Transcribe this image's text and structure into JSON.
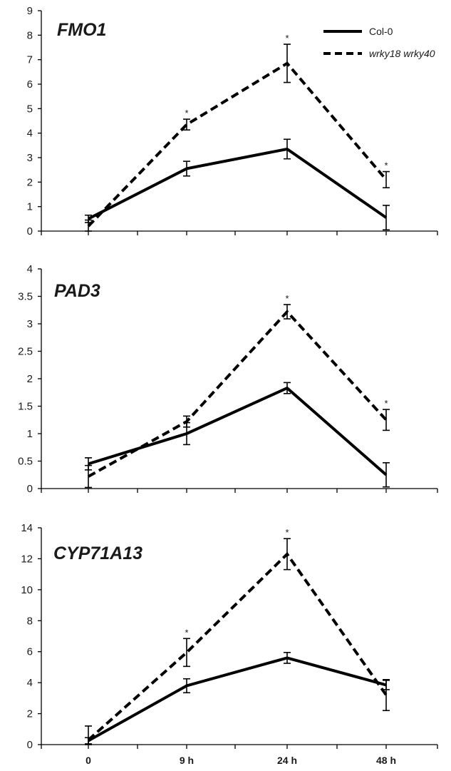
{
  "legend": {
    "items": [
      {
        "label": "Col-0",
        "style": "solid"
      },
      {
        "label": "wrky18 wrky40",
        "style": "dashed"
      }
    ]
  },
  "colors": {
    "line": "#000000",
    "text": "#1a1a1a",
    "background": "#ffffff"
  },
  "chart_data": [
    {
      "type": "line",
      "title": "FMO1",
      "x": [
        "0",
        "9 h",
        "24 h",
        "48 h"
      ],
      "ylim": [
        0,
        9
      ],
      "yticks": [
        0,
        1,
        2,
        3,
        4,
        5,
        6,
        7,
        8,
        9
      ],
      "grid": false,
      "xlabel": "",
      "ylabel": "",
      "legend_position": "top-right",
      "series": [
        {
          "name": "Col-0",
          "style": "solid",
          "values": [
            0.5,
            2.55,
            3.35,
            0.55
          ],
          "errors": [
            0.15,
            0.3,
            0.4,
            0.5
          ]
        },
        {
          "name": "wrky18 wrky40",
          "style": "dashed",
          "values": [
            0.2,
            4.35,
            6.85,
            2.1
          ],
          "errors": [
            0.25,
            0.22,
            0.78,
            0.33
          ]
        }
      ],
      "significance": [
        "",
        "*",
        "*",
        "*"
      ]
    },
    {
      "type": "line",
      "title": "PAD3",
      "x": [
        "0",
        "9 h",
        "24 h",
        "48 h"
      ],
      "ylim": [
        0,
        4
      ],
      "yticks": [
        "0",
        "0.5",
        "1",
        "1.5",
        "2",
        "2.5",
        "3",
        "3.5",
        "4"
      ],
      "grid": false,
      "xlabel": "",
      "ylabel": "",
      "series": [
        {
          "name": "Col-0",
          "style": "solid",
          "values": [
            0.45,
            1.0,
            1.83,
            0.25
          ],
          "errors": [
            0.11,
            0.2,
            0.1,
            0.22
          ]
        },
        {
          "name": "wrky18 wrky40",
          "style": "dashed",
          "values": [
            0.22,
            1.22,
            3.22,
            1.25
          ],
          "errors": [
            0.2,
            0.1,
            0.13,
            0.19
          ]
        }
      ],
      "significance": [
        "",
        "",
        "*",
        "*"
      ]
    },
    {
      "type": "line",
      "title": "CYP71A13",
      "x": [
        "0",
        "9 h",
        "24 h",
        "48 h"
      ],
      "ylim": [
        0,
        14
      ],
      "yticks": [
        0,
        2,
        4,
        6,
        8,
        10,
        12,
        14
      ],
      "grid": false,
      "xlabel": "",
      "ylabel": "",
      "series": [
        {
          "name": "Col-0",
          "style": "solid",
          "values": [
            0.25,
            3.8,
            5.6,
            3.85
          ],
          "errors": [
            0.2,
            0.45,
            0.35,
            0.3
          ]
        },
        {
          "name": "wrky18 wrky40",
          "style": "dashed",
          "values": [
            0.3,
            5.95,
            12.3,
            3.2
          ],
          "errors": [
            0.9,
            0.9,
            1.0,
            1.0
          ]
        }
      ],
      "significance": [
        "",
        "*",
        "*",
        ""
      ]
    }
  ]
}
